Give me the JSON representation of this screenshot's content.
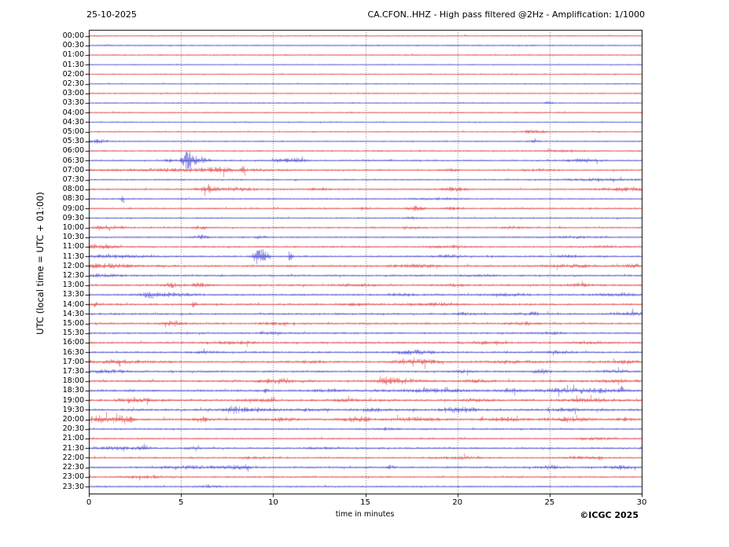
{
  "header": {
    "date": "25-10-2025",
    "title": "CA.CFON..HHZ - High pass filtered @2Hz - Amplification: 1/1000"
  },
  "axes": {
    "ylabel": "UTC (local time = UTC + 01:00)",
    "xlabel": "time in minutes"
  },
  "footer": {
    "copyright": "©ICGC 2025"
  },
  "colors": {
    "trace_red": "#e02020",
    "trace_blue": "#2323c8",
    "grid": "#777777",
    "frame": "#000000",
    "text": "#000000",
    "background": "#ffffff"
  },
  "chart_data": {
    "type": "line",
    "subtype": "helicorder-dayplot",
    "station": "CA.CFON..HHZ",
    "filter": "High pass filtered @2Hz",
    "amplification": "1/1000",
    "date": "25-10-2025",
    "xlabel": "time in minutes",
    "ylabel": "UTC (local time = UTC + 01:00)",
    "x_range_minutes": [
      0,
      30
    ],
    "x_ticks": [
      0,
      5,
      10,
      15,
      20,
      25,
      30
    ],
    "grid_minutes": [
      5,
      10,
      15,
      20,
      25
    ],
    "grid_style": "dotted",
    "row_interval_minutes": 30,
    "events_format": "[center_minute, gaussian_sigma_minutes, peak_half_amplitude_px]",
    "rows": [
      {
        "label": "00:00",
        "color": "red",
        "base_amp": 0.45,
        "events": []
      },
      {
        "label": "00:30",
        "color": "blue",
        "base_amp": 0.45,
        "events": []
      },
      {
        "label": "01:00",
        "color": "red",
        "base_amp": 0.45,
        "events": []
      },
      {
        "label": "01:30",
        "color": "blue",
        "base_amp": 0.32,
        "events": []
      },
      {
        "label": "02:00",
        "color": "red",
        "base_amp": 0.45,
        "events": []
      },
      {
        "label": "02:30",
        "color": "blue",
        "base_amp": 0.38,
        "events": []
      },
      {
        "label": "03:00",
        "color": "red",
        "base_amp": 0.45,
        "events": []
      },
      {
        "label": "03:30",
        "color": "blue",
        "base_amp": 0.38,
        "events": [
          [
            24.9,
            0.15,
            1.2
          ]
        ]
      },
      {
        "label": "04:00",
        "color": "red",
        "base_amp": 0.45,
        "events": []
      },
      {
        "label": "04:30",
        "color": "blue",
        "base_amp": 0.38,
        "events": []
      },
      {
        "label": "05:00",
        "color": "red",
        "base_amp": 0.45,
        "events": [
          [
            24.2,
            0.5,
            1.1
          ]
        ]
      },
      {
        "label": "05:30",
        "color": "blue",
        "base_amp": 0.42,
        "events": [
          [
            0.4,
            0.4,
            1.3
          ],
          [
            24.1,
            0.2,
            0.8
          ]
        ]
      },
      {
        "label": "06:00",
        "color": "red",
        "base_amp": 0.5,
        "events": [
          [
            25.6,
            0.6,
            0.7
          ]
        ]
      },
      {
        "label": "06:30",
        "color": "blue",
        "base_amp": 0.55,
        "events": [
          [
            5.35,
            0.18,
            6.2
          ],
          [
            5.75,
            0.45,
            3.2
          ],
          [
            4.3,
            0.12,
            1.4
          ],
          [
            10.2,
            0.15,
            1.1
          ],
          [
            11.2,
            0.4,
            1.8
          ],
          [
            26.9,
            0.7,
            1.2
          ]
        ]
      },
      {
        "label": "07:00",
        "color": "red",
        "base_amp": 0.6,
        "events": [
          [
            5,
            3.2,
            0.9
          ],
          [
            7,
            0.5,
            1.3
          ],
          [
            8.4,
            0.12,
            2.4
          ],
          [
            19.7,
            0.3,
            1.1
          ],
          [
            24.5,
            0.6,
            0.8
          ]
        ]
      },
      {
        "label": "07:30",
        "color": "blue",
        "base_amp": 0.5,
        "events": [
          [
            27.5,
            1.4,
            0.8
          ]
        ]
      },
      {
        "label": "08:00",
        "color": "red",
        "base_amp": 0.6,
        "events": [
          [
            6.4,
            0.28,
            2.8
          ],
          [
            7.9,
            0.9,
            1.1
          ],
          [
            12.5,
            0.4,
            0.9
          ],
          [
            19.8,
            0.4,
            1.5
          ],
          [
            29,
            0.9,
            1.1
          ]
        ]
      },
      {
        "label": "08:30",
        "color": "blue",
        "base_amp": 0.5,
        "events": [
          [
            1.8,
            0.08,
            2.0
          ],
          [
            18.8,
            0.8,
            0.7
          ]
        ]
      },
      {
        "label": "09:00",
        "color": "red",
        "base_amp": 0.55,
        "events": [
          [
            14.8,
            0.3,
            0.8
          ],
          [
            17.7,
            0.3,
            1.4
          ],
          [
            19.7,
            0.3,
            1.1
          ]
        ]
      },
      {
        "label": "09:30",
        "color": "blue",
        "base_amp": 0.5,
        "events": [
          [
            17.5,
            0.3,
            0.9
          ]
        ]
      },
      {
        "label": "10:00",
        "color": "red",
        "base_amp": 0.6,
        "events": [
          [
            0.8,
            0.8,
            1.1
          ],
          [
            6.1,
            0.3,
            1.3
          ],
          [
            17.5,
            0.3,
            0.9
          ],
          [
            23,
            0.5,
            0.7
          ]
        ]
      },
      {
        "label": "10:30",
        "color": "blue",
        "base_amp": 0.55,
        "events": [
          [
            6.1,
            0.22,
            1.8
          ],
          [
            9.3,
            0.2,
            1.0
          ],
          [
            26.5,
            0.8,
            0.7
          ]
        ]
      },
      {
        "label": "11:00",
        "color": "red",
        "base_amp": 0.6,
        "events": [
          [
            0.5,
            0.6,
            1.4
          ],
          [
            19.5,
            0.6,
            0.9
          ],
          [
            28,
            0.5,
            0.8
          ]
        ]
      },
      {
        "label": "11:30",
        "color": "blue",
        "base_amp": 0.65,
        "events": [
          [
            9.2,
            0.2,
            6.5
          ],
          [
            9.55,
            0.12,
            4.5
          ],
          [
            10.9,
            0.08,
            3.8
          ],
          [
            1.5,
            1.5,
            0.9
          ],
          [
            19.5,
            0.5,
            1.1
          ],
          [
            26,
            0.5,
            0.8
          ]
        ]
      },
      {
        "label": "12:00",
        "color": "red",
        "base_amp": 0.8,
        "events": [
          [
            1,
            1,
            1.2
          ],
          [
            17.8,
            0.8,
            1.0
          ],
          [
            26,
            0.8,
            0.9
          ],
          [
            29.5,
            0.4,
            1.0
          ]
        ]
      },
      {
        "label": "12:30",
        "color": "blue",
        "base_amp": 0.7,
        "events": [
          [
            0.7,
            0.7,
            1.0
          ],
          [
            21,
            0.6,
            0.7
          ]
        ]
      },
      {
        "label": "13:00",
        "color": "red",
        "base_amp": 0.75,
        "events": [
          [
            4.5,
            0.3,
            1.4
          ],
          [
            6,
            0.4,
            1.2
          ],
          [
            14.5,
            0.6,
            0.9
          ],
          [
            20,
            0.4,
            0.8
          ],
          [
            26.5,
            0.6,
            0.9
          ]
        ]
      },
      {
        "label": "13:30",
        "color": "blue",
        "base_amp": 0.7,
        "events": [
          [
            3.3,
            0.3,
            1.5
          ],
          [
            4.2,
            0.9,
            1.2
          ],
          [
            17,
            0.5,
            0.7
          ],
          [
            22.8,
            0.7,
            0.9
          ],
          [
            28.8,
            0.7,
            0.9
          ]
        ]
      },
      {
        "label": "14:00",
        "color": "red",
        "base_amp": 0.7,
        "events": [
          [
            0.3,
            0.2,
            1.3
          ],
          [
            5.7,
            0.09,
            2.3
          ],
          [
            14.5,
            0.5,
            0.8
          ],
          [
            19,
            0.8,
            0.9
          ]
        ]
      },
      {
        "label": "14:30",
        "color": "blue",
        "base_amp": 0.7,
        "events": [
          [
            20.5,
            0.5,
            0.8
          ],
          [
            24,
            0.5,
            1.1
          ],
          [
            29.3,
            0.6,
            1.2
          ]
        ]
      },
      {
        "label": "15:00",
        "color": "red",
        "base_amp": 0.7,
        "events": [
          [
            4.6,
            0.35,
            1.7
          ],
          [
            10,
            0.5,
            0.8
          ],
          [
            23.5,
            0.6,
            0.9
          ]
        ]
      },
      {
        "label": "15:30",
        "color": "blue",
        "base_amp": 0.65,
        "events": [
          [
            9.8,
            0.4,
            0.9
          ],
          [
            25,
            0.5,
            0.7
          ]
        ]
      },
      {
        "label": "16:00",
        "color": "red",
        "base_amp": 0.7,
        "events": [
          [
            8,
            0.8,
            1.0
          ],
          [
            21.5,
            0.6,
            0.9
          ],
          [
            27,
            0.5,
            0.8
          ]
        ]
      },
      {
        "label": "16:30",
        "color": "blue",
        "base_amp": 0.7,
        "events": [
          [
            6.5,
            0.4,
            1.0
          ],
          [
            17.2,
            0.5,
            1.3
          ],
          [
            18.3,
            0.4,
            1.2
          ],
          [
            25.5,
            0.5,
            0.8
          ]
        ]
      },
      {
        "label": "17:00",
        "color": "red",
        "base_amp": 0.8,
        "events": [
          [
            1.5,
            1.4,
            1.0
          ],
          [
            12,
            0.6,
            0.8
          ],
          [
            17,
            0.4,
            1.1
          ],
          [
            18.2,
            0.5,
            1.7
          ],
          [
            23,
            0.8,
            0.9
          ],
          [
            29,
            0.5,
            0.9
          ]
        ]
      },
      {
        "label": "17:30",
        "color": "blue",
        "base_amp": 0.7,
        "events": [
          [
            1,
            1,
            1.0
          ],
          [
            20.3,
            0.4,
            0.8
          ],
          [
            24.6,
            0.35,
            1.4
          ],
          [
            28.5,
            0.5,
            0.8
          ]
        ]
      },
      {
        "label": "18:00",
        "color": "red",
        "base_amp": 0.8,
        "events": [
          [
            10.3,
            0.8,
            1.2
          ],
          [
            16.2,
            0.3,
            1.4
          ],
          [
            16.8,
            0.7,
            1.8
          ],
          [
            21,
            0.5,
            0.8
          ],
          [
            28.7,
            0.7,
            1.1
          ]
        ]
      },
      {
        "label": "18:30",
        "color": "blue",
        "base_amp": 0.8,
        "events": [
          [
            9.6,
            0.07,
            3.2
          ],
          [
            13,
            0.6,
            0.8
          ],
          [
            18.5,
            1.5,
            1.0
          ],
          [
            23,
            0.5,
            1.0
          ],
          [
            25.5,
            0.8,
            1.4
          ],
          [
            27.5,
            0.8,
            1.3
          ],
          [
            28.9,
            0.09,
            2.6
          ]
        ]
      },
      {
        "label": "19:00",
        "color": "red",
        "base_amp": 0.85,
        "events": [
          [
            2.5,
            0.8,
            1.1
          ],
          [
            9.5,
            0.6,
            0.8
          ],
          [
            14,
            0.6,
            0.8
          ],
          [
            21,
            0.6,
            0.8
          ],
          [
            27,
            1,
            1.1
          ]
        ]
      },
      {
        "label": "19:30",
        "color": "blue",
        "base_amp": 0.85,
        "events": [
          [
            7.8,
            0.25,
            1.5
          ],
          [
            8.6,
            0.9,
            1.2
          ],
          [
            12,
            0.5,
            0.8
          ],
          [
            15.5,
            0.5,
            0.9
          ],
          [
            19.4,
            0.3,
            1.3
          ],
          [
            20.2,
            0.5,
            1.7
          ],
          [
            26,
            0.6,
            0.9
          ]
        ]
      },
      {
        "label": "20:00",
        "color": "red",
        "base_amp": 0.9,
        "events": [
          [
            0.5,
            0.5,
            2.4
          ],
          [
            1.8,
            0.3,
            2.8
          ],
          [
            2.3,
            0.12,
            3.4
          ],
          [
            6.2,
            0.3,
            1.7
          ],
          [
            10.5,
            0.4,
            1.0
          ],
          [
            14.6,
            0.5,
            1.6
          ],
          [
            17.8,
            0.8,
            1.4
          ],
          [
            22.6,
            0.7,
            1.3
          ],
          [
            26,
            0.8,
            1.4
          ],
          [
            29,
            0.4,
            1.0
          ]
        ]
      },
      {
        "label": "20:30",
        "color": "blue",
        "base_amp": 0.6,
        "events": [
          [
            16,
            0.5,
            0.7
          ]
        ]
      },
      {
        "label": "21:00",
        "color": "red",
        "base_amp": 0.6,
        "events": [
          [
            27.5,
            0.6,
            0.8
          ]
        ]
      },
      {
        "label": "21:30",
        "color": "blue",
        "base_amp": 0.65,
        "events": [
          [
            1.5,
            0.8,
            1.0
          ],
          [
            2.9,
            0.25,
            1.8
          ],
          [
            5.5,
            0.3,
            0.9
          ],
          [
            12.5,
            0.5,
            0.7
          ]
        ]
      },
      {
        "label": "22:00",
        "color": "red",
        "base_amp": 0.65,
        "events": [
          [
            9,
            0.6,
            0.7
          ],
          [
            20,
            0.8,
            0.9
          ],
          [
            26.5,
            0.6,
            0.9
          ],
          [
            27.8,
            0.09,
            2.3
          ]
        ]
      },
      {
        "label": "22:30",
        "color": "blue",
        "base_amp": 0.7,
        "events": [
          [
            5.5,
            1.2,
            0.9
          ],
          [
            8,
            0.45,
            1.3
          ],
          [
            8.6,
            0.08,
            2.3
          ],
          [
            16.3,
            0.2,
            1.1
          ],
          [
            25,
            0.4,
            1.3
          ],
          [
            28.9,
            0.5,
            1.1
          ]
        ]
      },
      {
        "label": "23:00",
        "color": "red",
        "base_amp": 0.6,
        "events": [
          [
            3,
            0.8,
            0.8
          ]
        ]
      },
      {
        "label": "23:30",
        "color": "blue",
        "base_amp": 0.55,
        "events": [
          [
            6.6,
            0.4,
            0.8
          ]
        ]
      }
    ]
  }
}
